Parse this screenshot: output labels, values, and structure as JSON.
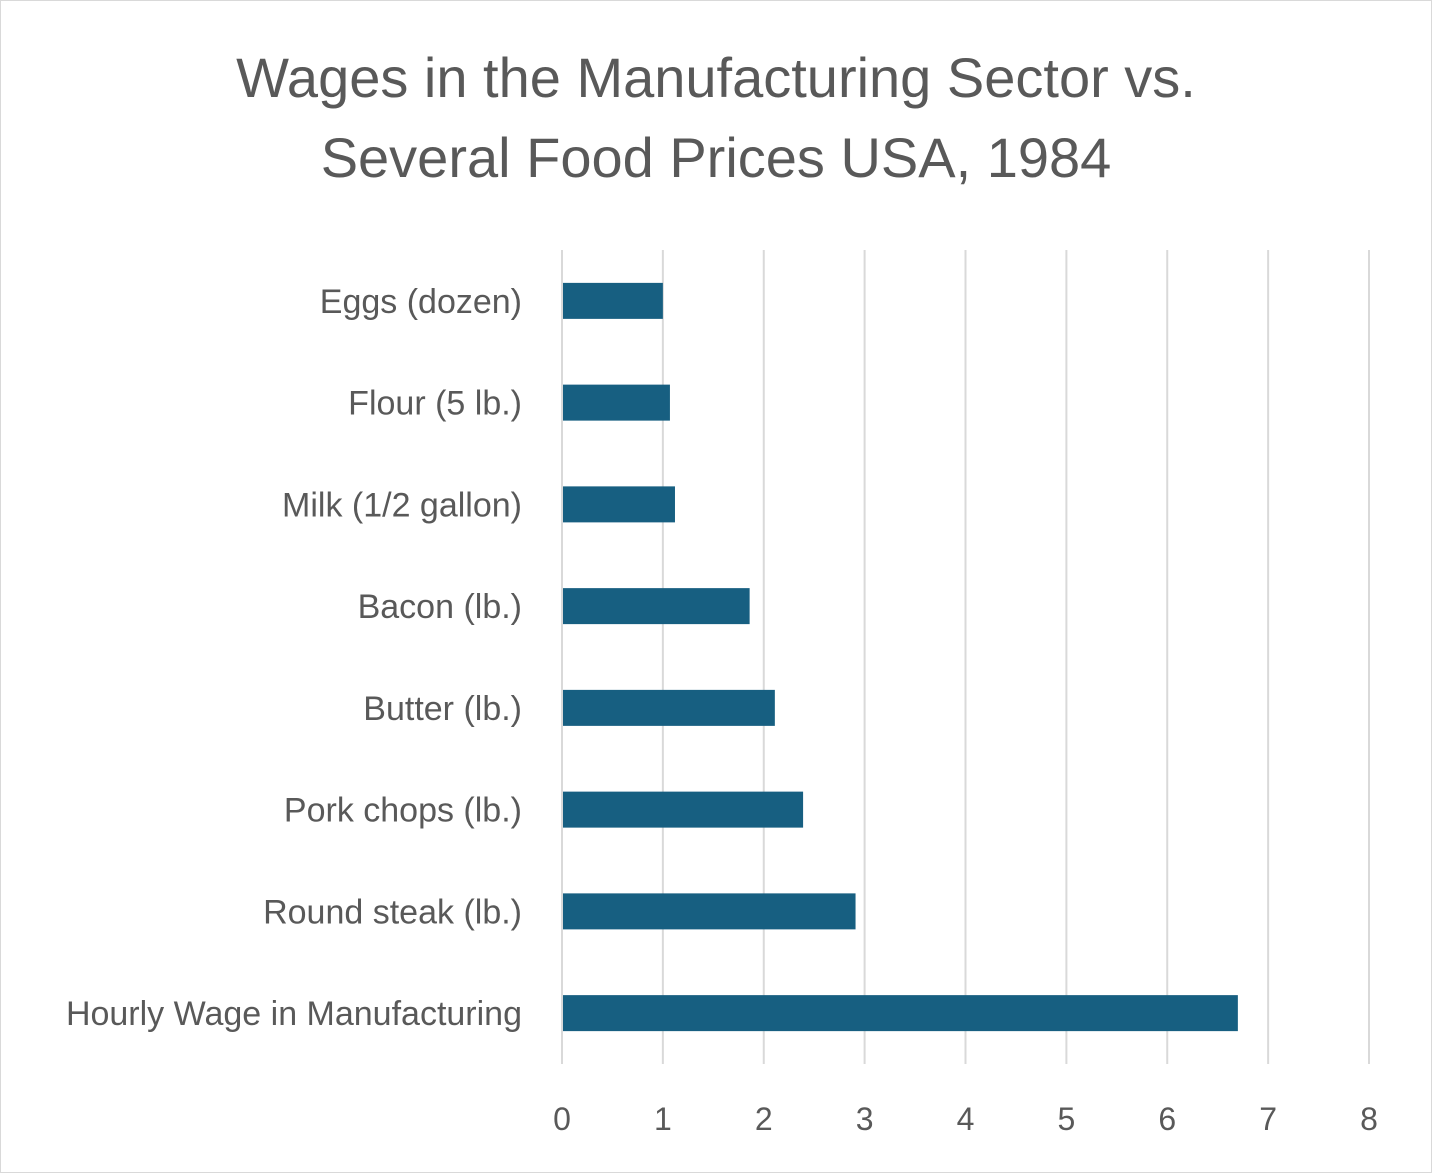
{
  "chart_data": {
    "type": "bar",
    "orientation": "horizontal",
    "title_lines": [
      "Wages in the Manufacturing Sector vs.",
      "Several Food Prices USA, 1984"
    ],
    "categories": [
      "Eggs (dozen)",
      "Flour (5 lb.)",
      "Milk (1/2 gallon)",
      "Bacon (lb.)",
      "Butter (lb.)",
      "Pork chops (lb.)",
      "Round steak (lb.)",
      "Hourly Wage in Manufacturing"
    ],
    "values": [
      1.0,
      1.07,
      1.12,
      1.86,
      2.11,
      2.39,
      2.91,
      6.7
    ],
    "xlim": [
      0,
      8
    ],
    "xticks": [
      "0",
      "1",
      "2",
      "3",
      "4",
      "5",
      "6",
      "7",
      "8"
    ],
    "grid": "vertical",
    "legend": "none",
    "bar_color": "#175f81",
    "grid_color": "#d9d9d9",
    "text_color": "#595959"
  }
}
